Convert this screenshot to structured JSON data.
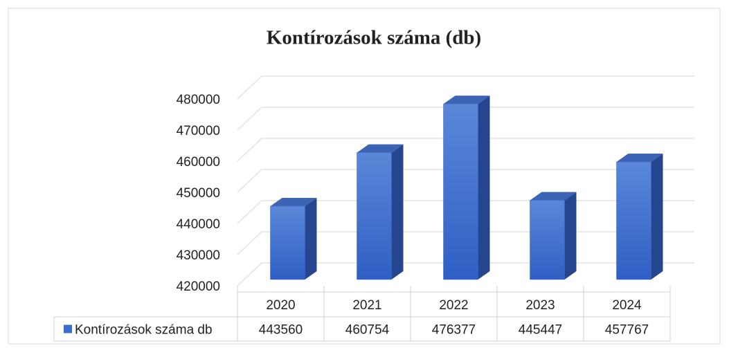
{
  "chart_data": {
    "type": "bar3d",
    "title": "Kontírozások száma (db)",
    "categories": [
      "2020",
      "2021",
      "2022",
      "2023",
      "2024"
    ],
    "series": [
      {
        "name": "Kontírozások száma db",
        "color": "#3b6cd0",
        "values": [
          443560,
          460754,
          476377,
          445447,
          457767
        ]
      }
    ],
    "ylim": [
      420000,
      480000
    ],
    "yticks": [
      420000,
      430000,
      440000,
      450000,
      460000,
      470000,
      480000
    ],
    "grid": true,
    "legend": "table"
  }
}
